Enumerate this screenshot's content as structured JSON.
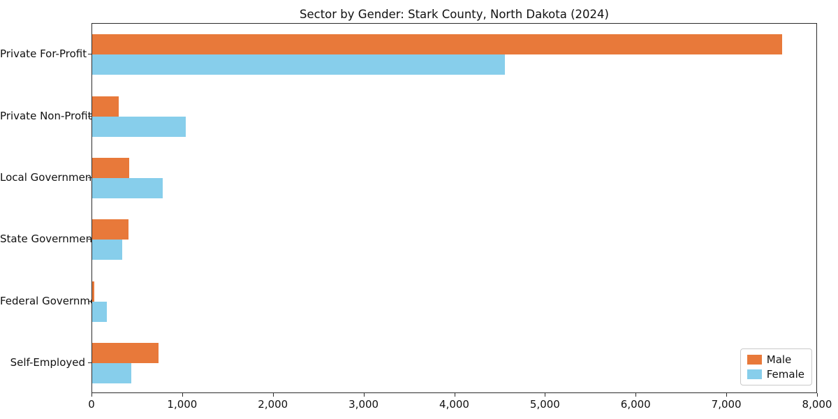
{
  "chart_data": {
    "type": "bar",
    "orientation": "horizontal",
    "title": "Sector by Gender: Stark County, North Dakota (2024)",
    "categories": [
      "Private For-Profit",
      "Private Non-Profit",
      "Local Government",
      "State Government",
      "Federal Government",
      "Self-Employed"
    ],
    "series": [
      {
        "name": "Male",
        "color": "#e8793a",
        "values": [
          7620,
          290,
          410,
          400,
          20,
          730
        ]
      },
      {
        "name": "Female",
        "color": "#87ceeb",
        "values": [
          4560,
          1030,
          780,
          330,
          160,
          430
        ]
      }
    ],
    "xlim": [
      0,
      8000
    ],
    "xticks": [
      0,
      1000,
      2000,
      3000,
      4000,
      5000,
      6000,
      7000,
      8000
    ],
    "xtick_labels": [
      "0",
      "1,000",
      "2,000",
      "3,000",
      "4,000",
      "5,000",
      "6,000",
      "7,000",
      "8,000"
    ],
    "legend_position": "lower right",
    "grid": false,
    "axis_color": "#2b2b2b"
  }
}
